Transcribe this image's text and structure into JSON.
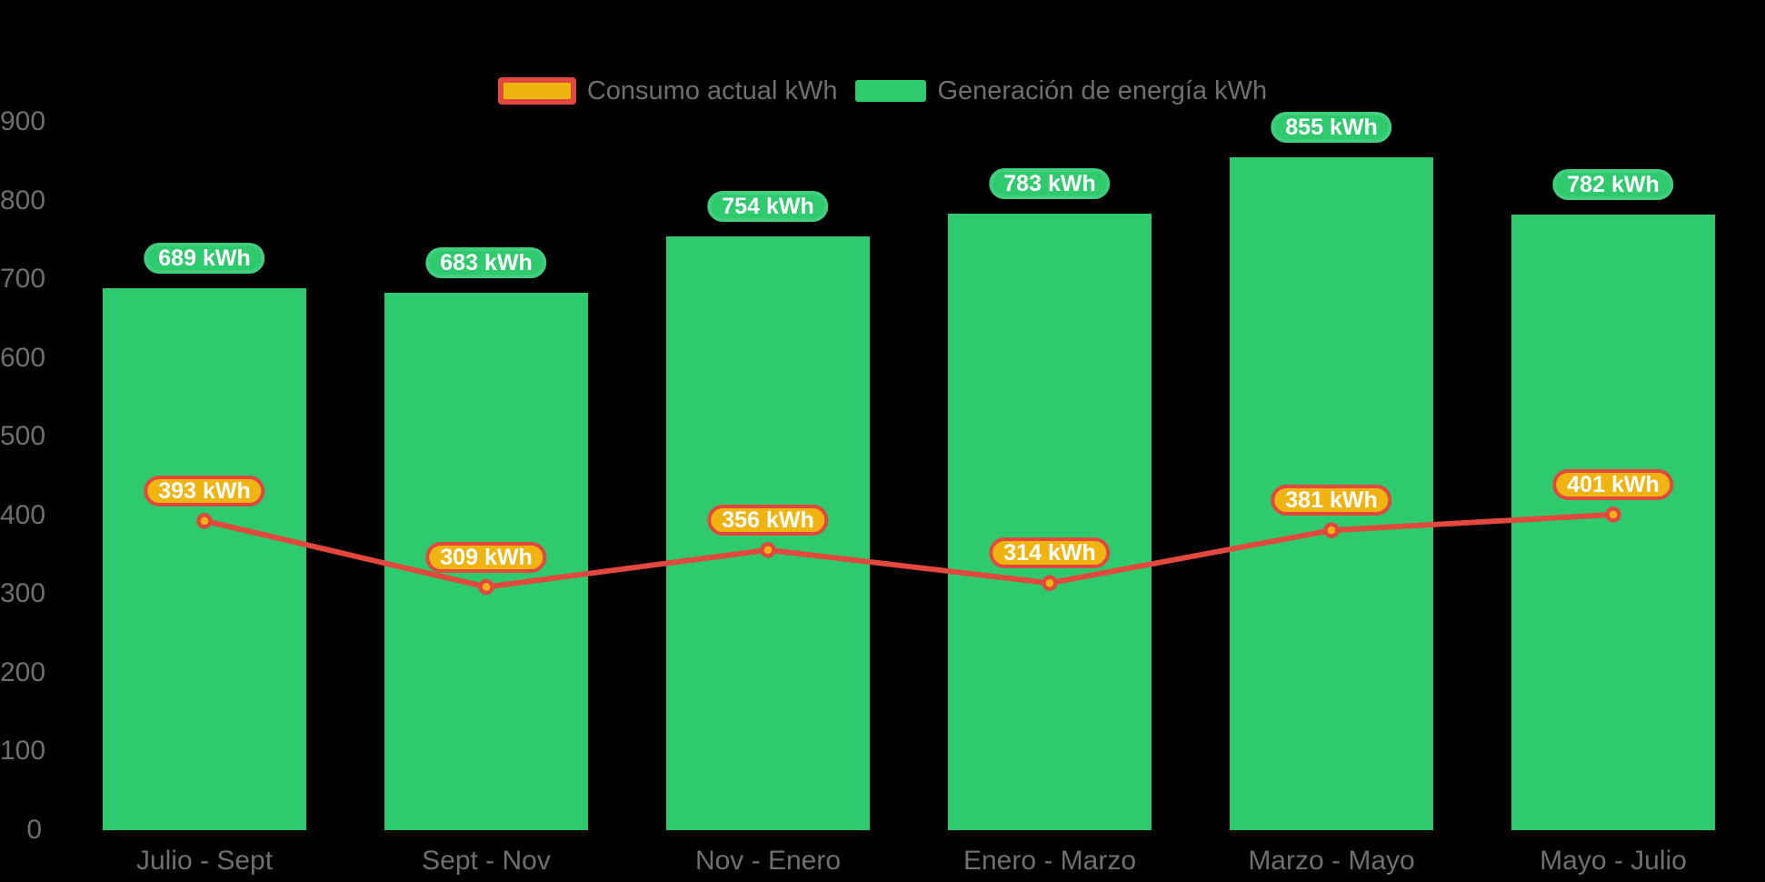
{
  "chart_data": {
    "type": "combo",
    "title": "",
    "categories": [
      "Julio - Sept",
      "Sept - Nov",
      "Nov - Enero",
      "Enero - Marzo",
      "Marzo - Mayo",
      "Mayo - Julio"
    ],
    "series": [
      {
        "name": "Consumo actual kWh",
        "type": "line",
        "color": "#e2483d",
        "marker_fill": "#f0b411",
        "values": [
          393,
          309,
          356,
          314,
          381,
          401
        ],
        "labels": [
          "393 kWh",
          "309 kWh",
          "356 kWh",
          "314 kWh",
          "381 kWh",
          "401 kWh"
        ]
      },
      {
        "name": "Generación de energía kWh",
        "type": "bar",
        "color": "#2fc96e",
        "values": [
          689,
          683,
          754,
          783,
          855,
          782
        ],
        "labels": [
          "689 kWh",
          "683 kWh",
          "754 kWh",
          "783 kWh",
          "855 kWh",
          "782 kWh"
        ]
      }
    ],
    "yticks": [
      0,
      100,
      200,
      300,
      400,
      500,
      600,
      700,
      800,
      900
    ],
    "ylim": [
      0,
      900
    ],
    "xlabel": "",
    "ylabel": "",
    "grid": false,
    "legend_position": "top",
    "background": "#000000",
    "colors": {
      "bar": "#2fc96e",
      "line": "#e2483d",
      "marker": "#f0b411",
      "axis_text": "#6f6f6f",
      "badge_text": "#ffffff"
    }
  }
}
